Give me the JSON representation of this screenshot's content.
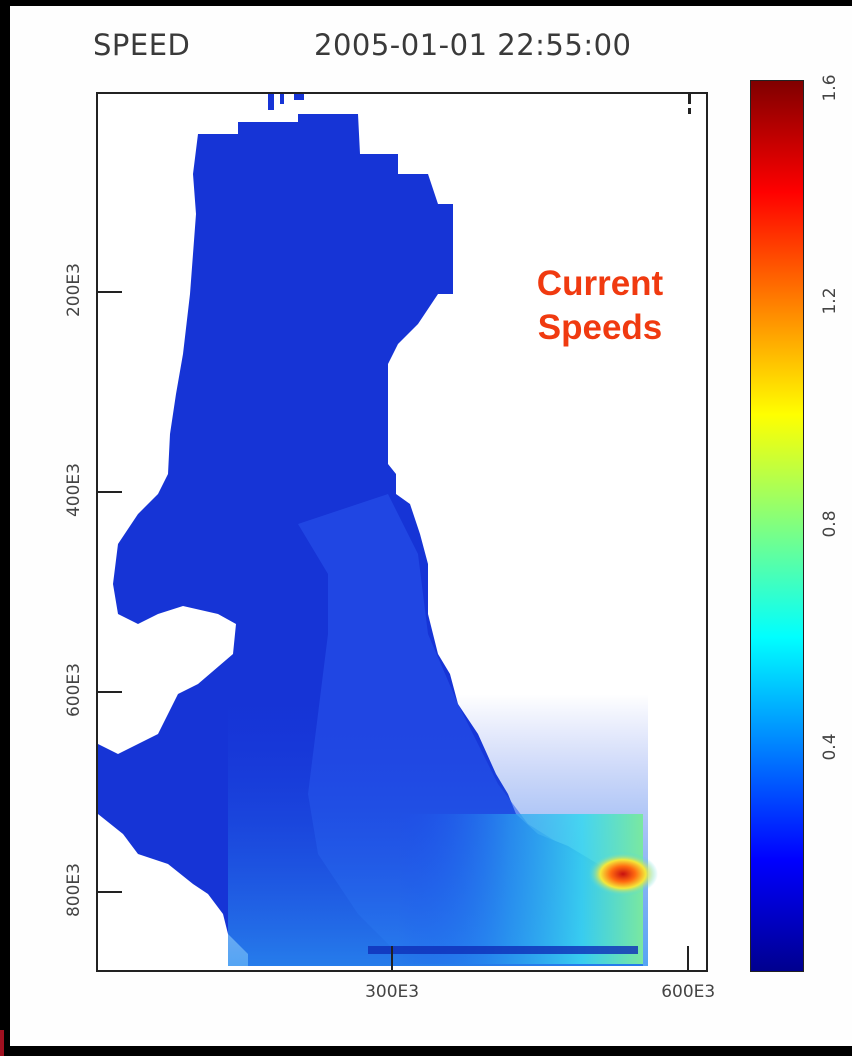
{
  "header": {
    "variable": "SPEED",
    "timestamp": "2005-01-01 22:55:00"
  },
  "annotation": {
    "line1": "Current",
    "line2": "Speeds"
  },
  "colors": {
    "annotation": "#f03a10",
    "water_base": "#1530d8",
    "land": "#ffffff",
    "colormap": [
      "#00008f",
      "#0000ff",
      "#0080ff",
      "#00ffff",
      "#80ff80",
      "#ffff00",
      "#ff8000",
      "#ff0000",
      "#800000"
    ]
  },
  "chart_data": {
    "type": "heatmap",
    "title": "SPEED",
    "subtitle": "2005-01-01 22:55:00",
    "x_ticks": [
      {
        "value": 300000,
        "label": "300E3"
      },
      {
        "value": 600000,
        "label": "600E3"
      }
    ],
    "y_ticks": [
      {
        "value": 200000,
        "label": "200E3"
      },
      {
        "value": 400000,
        "label": "400E3"
      },
      {
        "value": 600000,
        "label": "600E3"
      },
      {
        "value": 800000,
        "label": "800E3"
      }
    ],
    "xlim": [
      0,
      620000
    ],
    "ylim": [
      0,
      880000
    ],
    "y_inverted": true,
    "colorbar": {
      "range": [
        0,
        1.6
      ],
      "ticks": [
        {
          "value": 0.4,
          "label": "0.4"
        },
        {
          "value": 0.8,
          "label": "0.8"
        },
        {
          "value": 1.2,
          "label": "1.2"
        },
        {
          "value": 1.6,
          "label": "1.6"
        }
      ]
    },
    "speed_summary": {
      "typical_value": 0.15,
      "southern_outlet_value": 0.6,
      "peak_value": 1.5
    },
    "grid": false
  }
}
